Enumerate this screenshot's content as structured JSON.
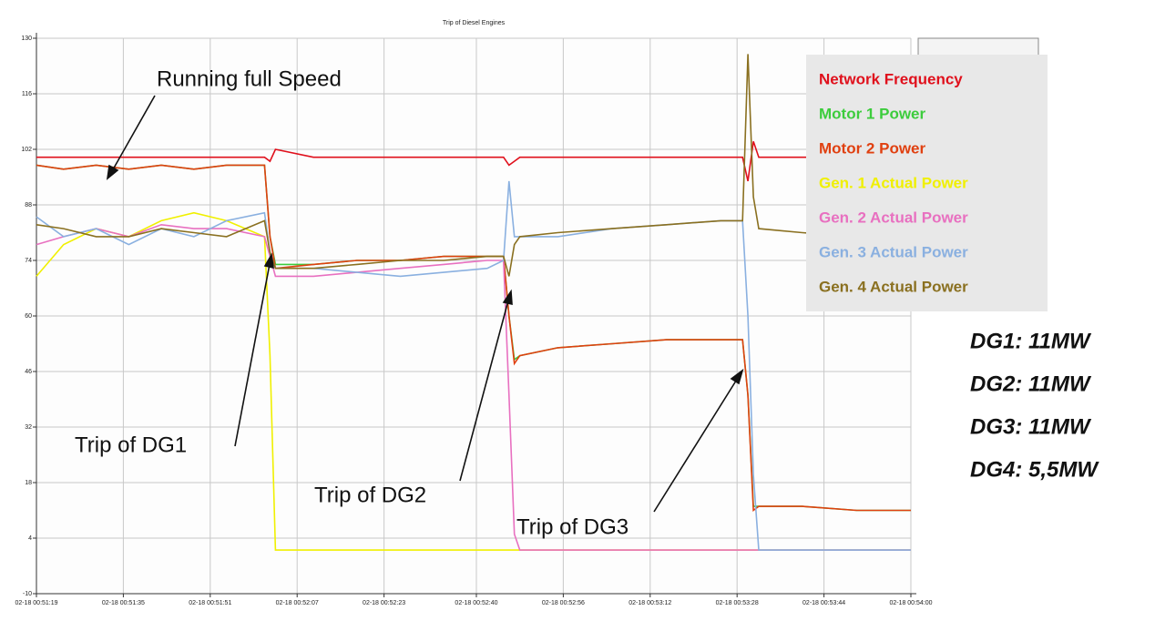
{
  "chart_data": {
    "type": "line",
    "title": "Trip of Diesel Engines",
    "x": [
      3079,
      3084,
      3090,
      3096,
      3102,
      3108,
      3114,
      3121,
      3122,
      3123,
      3130,
      3138,
      3146,
      3154,
      3162,
      3165,
      3166,
      3167,
      3168,
      3175,
      3185,
      3195,
      3205,
      3209,
      3210,
      3211,
      3212,
      3220,
      3230,
      3240
    ],
    "series": [
      {
        "name": "Network Frequency",
        "color": "#e0101c",
        "values": [
          100,
          100,
          100,
          100,
          100,
          100,
          100,
          100,
          99,
          102,
          100,
          100,
          100,
          100,
          100,
          100,
          98,
          99,
          100,
          100,
          100,
          100,
          100,
          100,
          94,
          104,
          100,
          100,
          100,
          100
        ]
      },
      {
        "name": "Motor 1 Power",
        "color": "#3ccc3c",
        "values": [
          98,
          97,
          98,
          97,
          98,
          97,
          98,
          98,
          80,
          73,
          73,
          74,
          74,
          75,
          75,
          75,
          60,
          49,
          50,
          52,
          53,
          54,
          54,
          54,
          40,
          12,
          12,
          12,
          11,
          11
        ]
      },
      {
        "name": "Motor 2 Power",
        "color": "#e04010",
        "values": [
          98,
          97,
          98,
          97,
          98,
          97,
          98,
          98,
          80,
          72,
          73,
          74,
          74,
          75,
          75,
          75,
          60,
          48,
          50,
          52,
          53,
          54,
          54,
          54,
          40,
          11,
          12,
          12,
          11,
          11
        ]
      },
      {
        "name": "Gen. 1 Actual Power",
        "color": "#f0f000",
        "values": [
          70,
          78,
          82,
          80,
          84,
          86,
          84,
          80,
          50,
          1,
          1,
          1,
          1,
          1,
          1,
          1,
          1,
          1,
          1,
          1,
          1,
          1,
          1,
          1,
          1,
          1,
          1,
          1,
          1,
          1
        ]
      },
      {
        "name": "Gen. 2 Actual Power",
        "color": "#e870c0",
        "values": [
          78,
          80,
          82,
          80,
          83,
          82,
          82,
          80,
          75,
          70,
          70,
          71,
          72,
          73,
          74,
          74,
          40,
          5,
          1,
          1,
          1,
          1,
          1,
          1,
          1,
          1,
          1,
          1,
          1,
          1
        ]
      },
      {
        "name": "Gen. 3 Actual Power",
        "color": "#8ab0e0",
        "values": [
          85,
          80,
          82,
          78,
          82,
          80,
          84,
          86,
          76,
          72,
          72,
          71,
          70,
          71,
          72,
          74,
          94,
          80,
          80,
          80,
          82,
          83,
          84,
          84,
          60,
          20,
          1,
          1,
          1,
          1
        ]
      },
      {
        "name": "Gen. 4 Actual Power",
        "color": "#8a7020",
        "values": [
          83,
          82,
          80,
          80,
          82,
          81,
          80,
          84,
          76,
          72,
          72,
          73,
          74,
          74,
          75,
          75,
          70,
          78,
          80,
          81,
          82,
          83,
          84,
          84,
          126,
          90,
          82,
          81,
          80,
          80
        ]
      }
    ],
    "xlim": [
      3079,
      3240
    ],
    "xticks": [
      {
        "value": 3079,
        "label": "02-18 00:51:19"
      },
      {
        "value": 3095,
        "label": "02-18 00:51:35"
      },
      {
        "value": 3111,
        "label": "02-18 00:51:51"
      },
      {
        "value": 3127,
        "label": "02-18 00:52:07"
      },
      {
        "value": 3143,
        "label": "02-18 00:52:23"
      },
      {
        "value": 3160,
        "label": "02-18 00:52:40"
      },
      {
        "value": 3176,
        "label": "02-18 00:52:56"
      },
      {
        "value": 3192,
        "label": "02-18 00:53:12"
      },
      {
        "value": 3208,
        "label": "02-18 00:53:28"
      },
      {
        "value": 3224,
        "label": "02-18 00:53:44"
      },
      {
        "value": 3240,
        "label": "02-18 00:54:00"
      }
    ],
    "ylim": [
      -10,
      130
    ],
    "yticks": [
      -10,
      4,
      18,
      32,
      46,
      60,
      74,
      88,
      102,
      116,
      130
    ],
    "grid": true,
    "legend": "upper right",
    "annotations": [
      "Running full Speed",
      "Trip of DG1",
      "Trip of DG2",
      "Trip of DG3"
    ],
    "notes": [
      "DG1: 11MW",
      "DG2: 11MW",
      "DG3: 11MW",
      "DG4: 5,5MW"
    ]
  }
}
